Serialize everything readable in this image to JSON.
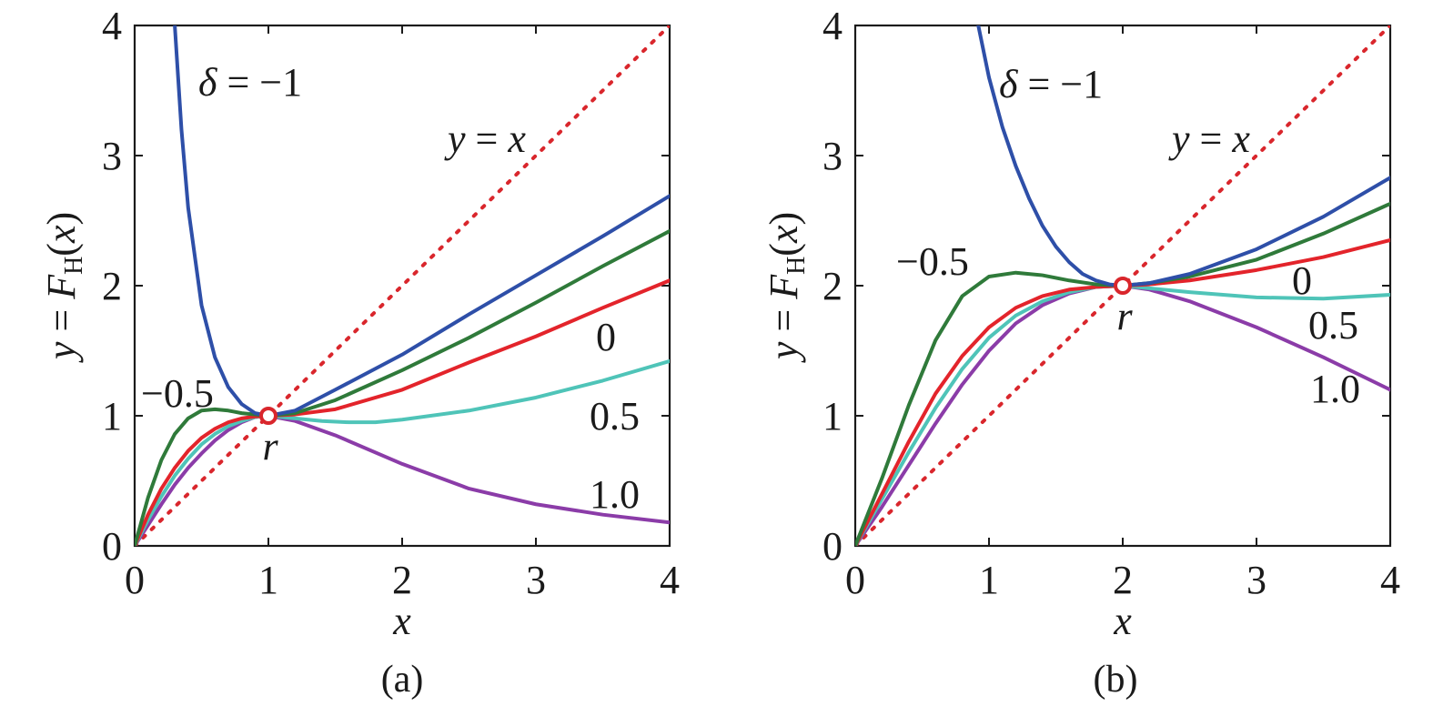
{
  "colors": {
    "delta_-1": "#2e4fa8",
    "delta_-0.5": "#2f7a3a",
    "delta_0": "#e3242b",
    "delta_0.5": "#4fc4b8",
    "delta_1.0": "#8b3ca8",
    "identity": "#d9262c",
    "axes": "#1a1a1a"
  },
  "chart_data": [
    {
      "type": "line",
      "panel": "(a)",
      "xlabel": "x",
      "ylabel_parts": {
        "y": "y",
        "eq": " = ",
        "F": "F",
        "sub": "H",
        "paren_open": "(",
        "x": "x",
        "paren_close": ")"
      },
      "xlim": [
        0,
        4
      ],
      "ylim": [
        0,
        4
      ],
      "x_ticks": [
        "0",
        "1",
        "2",
        "3",
        "4"
      ],
      "y_ticks": [
        "0",
        "1",
        "2",
        "3",
        "4"
      ],
      "fixed_point": {
        "x": 1,
        "y": 1,
        "label": "r"
      },
      "reference_line": {
        "label_y": "y",
        "label_eq": " = ",
        "label_x": "x",
        "from": [
          0,
          0
        ],
        "to": [
          4,
          4
        ]
      },
      "delta_symbol": "δ",
      "series": [
        {
          "name": "−1",
          "label_prefix": "δ = ",
          "x": [
            0.3,
            0.35,
            0.4,
            0.5,
            0.6,
            0.7,
            0.8,
            0.9,
            1.0,
            1.2,
            1.5,
            2.0,
            2.5,
            3.0,
            3.5,
            4.0
          ],
          "values": [
            4.0,
            3.2,
            2.6,
            1.85,
            1.45,
            1.22,
            1.09,
            1.02,
            1.0,
            1.04,
            1.2,
            1.47,
            1.78,
            2.08,
            2.38,
            2.69
          ]
        },
        {
          "name": "−0.5",
          "x": [
            0.0,
            0.1,
            0.2,
            0.3,
            0.4,
            0.5,
            0.6,
            0.7,
            0.8,
            0.9,
            1.0,
            1.2,
            1.5,
            2.0,
            2.5,
            3.0,
            3.5,
            4.0
          ],
          "values": [
            0.0,
            0.37,
            0.66,
            0.86,
            0.98,
            1.04,
            1.05,
            1.04,
            1.02,
            1.01,
            1.0,
            1.02,
            1.12,
            1.35,
            1.6,
            1.87,
            2.15,
            2.42
          ]
        },
        {
          "name": "0",
          "x": [
            0.0,
            0.1,
            0.2,
            0.3,
            0.4,
            0.5,
            0.6,
            0.7,
            0.8,
            0.9,
            1.0,
            1.2,
            1.5,
            2.0,
            2.5,
            3.0,
            3.5,
            4.0
          ],
          "values": [
            0.0,
            0.24,
            0.44,
            0.6,
            0.73,
            0.83,
            0.9,
            0.95,
            0.98,
            0.995,
            1.0,
            1.01,
            1.05,
            1.2,
            1.41,
            1.61,
            1.83,
            2.04
          ]
        },
        {
          "name": "0.5",
          "x": [
            0.0,
            0.1,
            0.2,
            0.3,
            0.4,
            0.5,
            0.6,
            0.7,
            0.8,
            0.9,
            1.0,
            1.2,
            1.4,
            1.6,
            1.8,
            2.0,
            2.5,
            3.0,
            3.5,
            4.0
          ],
          "values": [
            0.0,
            0.2,
            0.38,
            0.54,
            0.67,
            0.78,
            0.86,
            0.92,
            0.96,
            0.99,
            1.0,
            0.98,
            0.96,
            0.95,
            0.95,
            0.97,
            1.04,
            1.14,
            1.27,
            1.42
          ]
        },
        {
          "name": "1.0",
          "x": [
            0.0,
            0.1,
            0.2,
            0.3,
            0.4,
            0.5,
            0.6,
            0.7,
            0.8,
            0.9,
            1.0,
            1.2,
            1.5,
            2.0,
            2.5,
            3.0,
            3.5,
            4.0
          ],
          "values": [
            0.0,
            0.16,
            0.32,
            0.47,
            0.6,
            0.71,
            0.81,
            0.89,
            0.95,
            0.99,
            1.0,
            0.96,
            0.85,
            0.63,
            0.44,
            0.32,
            0.24,
            0.18
          ]
        }
      ]
    },
    {
      "type": "line",
      "panel": "(b)",
      "xlabel": "x",
      "ylabel_parts": {
        "y": "y",
        "eq": " = ",
        "F": "F",
        "sub": "H",
        "paren_open": "(",
        "x": "x",
        "paren_close": ")"
      },
      "xlim": [
        0,
        4
      ],
      "ylim": [
        0,
        4
      ],
      "x_ticks": [
        "0",
        "1",
        "2",
        "3",
        "4"
      ],
      "y_ticks": [
        "0",
        "1",
        "2",
        "3",
        "4"
      ],
      "fixed_point": {
        "x": 2,
        "y": 2,
        "label": "r"
      },
      "reference_line": {
        "label_y": "y",
        "label_eq": " = ",
        "label_x": "x",
        "from": [
          0,
          0
        ],
        "to": [
          4,
          4
        ]
      },
      "delta_symbol": "δ",
      "series": [
        {
          "name": "−1",
          "label_prefix": "δ = ",
          "x": [
            0.92,
            1.0,
            1.1,
            1.2,
            1.3,
            1.4,
            1.5,
            1.6,
            1.7,
            1.8,
            1.9,
            2.0,
            2.2,
            2.5,
            3.0,
            3.5,
            4.0
          ],
          "values": [
            4.0,
            3.6,
            3.22,
            2.92,
            2.67,
            2.46,
            2.3,
            2.18,
            2.09,
            2.04,
            2.01,
            2.0,
            2.02,
            2.09,
            2.28,
            2.53,
            2.83
          ]
        },
        {
          "name": "−0.5",
          "x": [
            0.0,
            0.2,
            0.4,
            0.6,
            0.8,
            1.0,
            1.2,
            1.4,
            1.6,
            1.8,
            2.0,
            2.2,
            2.5,
            3.0,
            3.5,
            4.0
          ],
          "values": [
            0.0,
            0.52,
            1.08,
            1.58,
            1.92,
            2.07,
            2.1,
            2.08,
            2.04,
            2.01,
            2.0,
            2.02,
            2.07,
            2.2,
            2.4,
            2.63
          ]
        },
        {
          "name": "0",
          "x": [
            0.0,
            0.2,
            0.4,
            0.6,
            0.8,
            1.0,
            1.2,
            1.4,
            1.6,
            1.8,
            2.0,
            2.2,
            2.5,
            3.0,
            3.5,
            4.0
          ],
          "values": [
            0.0,
            0.4,
            0.8,
            1.17,
            1.46,
            1.68,
            1.83,
            1.92,
            1.97,
            1.99,
            2.0,
            2.01,
            2.04,
            2.12,
            2.22,
            2.35
          ]
        },
        {
          "name": "0.5",
          "x": [
            0.0,
            0.2,
            0.4,
            0.6,
            0.8,
            1.0,
            1.2,
            1.4,
            1.6,
            1.8,
            2.0,
            2.2,
            2.5,
            3.0,
            3.5,
            4.0
          ],
          "values": [
            0.0,
            0.36,
            0.72,
            1.06,
            1.36,
            1.6,
            1.77,
            1.88,
            1.95,
            1.99,
            2.0,
            1.98,
            1.95,
            1.91,
            1.9,
            1.93
          ]
        },
        {
          "name": "1.0",
          "x": [
            0.0,
            0.2,
            0.4,
            0.6,
            0.8,
            1.0,
            1.2,
            1.4,
            1.6,
            1.8,
            2.0,
            2.2,
            2.5,
            3.0,
            3.5,
            4.0
          ],
          "values": [
            0.0,
            0.3,
            0.62,
            0.94,
            1.24,
            1.5,
            1.71,
            1.85,
            1.94,
            1.99,
            2.0,
            1.97,
            1.88,
            1.68,
            1.45,
            1.2
          ]
        }
      ]
    }
  ]
}
